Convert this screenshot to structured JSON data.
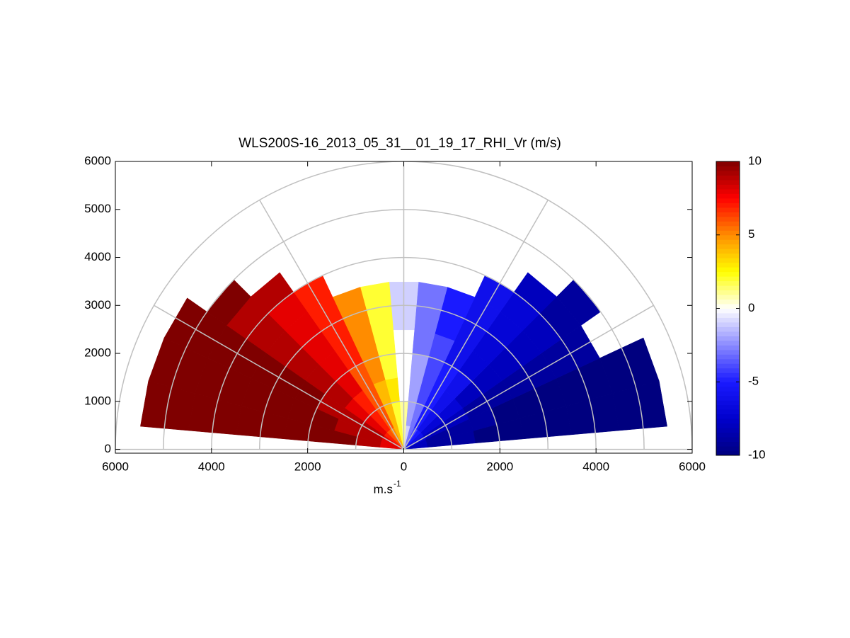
{
  "chart_data": {
    "type": "polar-rhi",
    "title": "WLS200S-16_2013_05_31__01_19_17_RHI_Vr (m/s)",
    "xlabel": "m.s",
    "xlabel_sup": "-1",
    "xlim": [
      -6000,
      6000
    ],
    "ylim": [
      -80,
      6000
    ],
    "xticks": [
      {
        "value": -6000,
        "label": "6000"
      },
      {
        "value": -4000,
        "label": "4000"
      },
      {
        "value": -2000,
        "label": "2000"
      },
      0,
      2000,
      4000,
      6000
    ],
    "yticks": [
      0,
      1000,
      2000,
      3000,
      4000,
      5000,
      6000
    ],
    "range_rings": [
      1000,
      2000,
      3000,
      4000,
      5000,
      6000
    ],
    "radial_angles": [
      0,
      30,
      60,
      90,
      120,
      150,
      180
    ],
    "grid_color": "#c0c0c0",
    "angle_edges": [
      5,
      15,
      25,
      35,
      45,
      55,
      65,
      75,
      85,
      95,
      105,
      115,
      125,
      135,
      145,
      155,
      165,
      175
    ],
    "range_edges": [
      0,
      500,
      1000,
      1500,
      2000,
      2500,
      3000,
      3500,
      4000,
      4500,
      5000,
      5500,
      6000
    ],
    "field": [
      [
        -8,
        -9,
        -9,
        -10,
        -10,
        -10,
        -10,
        -10,
        -10,
        -10,
        -10,
        null
      ],
      [
        -8,
        -9,
        -9,
        -9,
        -10,
        -10,
        -10,
        -10,
        -10,
        -10,
        -10,
        null
      ],
      [
        -7,
        -8,
        -8,
        -9,
        -9,
        -9,
        -9,
        -9,
        -9,
        null,
        null,
        null
      ],
      [
        -6,
        -7,
        -7,
        -8,
        -8,
        -8,
        -8,
        -8,
        -9,
        -9,
        null,
        null
      ],
      [
        -5,
        -6,
        -6,
        -6,
        -7,
        -7,
        -7,
        -7,
        -8,
        null,
        null,
        null
      ],
      [
        -4,
        -5,
        -5,
        -5,
        -6,
        -6,
        -6,
        -6,
        null,
        null,
        null,
        null
      ],
      [
        -3,
        -3,
        -4,
        -4,
        -4,
        -5,
        -5,
        null,
        null,
        null,
        null,
        null
      ],
      [
        -1,
        -2,
        -2,
        -2,
        -3,
        -3,
        -3,
        null,
        null,
        null,
        null,
        null
      ],
      [
        1,
        1,
        0,
        0,
        0,
        -1,
        -1,
        null,
        null,
        null,
        null,
        null
      ],
      [
        2,
        2,
        3,
        2,
        2,
        2,
        2,
        null,
        null,
        null,
        null,
        null
      ],
      [
        4,
        4,
        4,
        5,
        5,
        5,
        5,
        null,
        null,
        null,
        null,
        null
      ],
      [
        5,
        6,
        6,
        6,
        7,
        7,
        7,
        7,
        null,
        null,
        null,
        null
      ],
      [
        6,
        7,
        7,
        8,
        8,
        8,
        8,
        8,
        9,
        null,
        null,
        null
      ],
      [
        7,
        8,
        8,
        9,
        9,
        9,
        9,
        9,
        9,
        10,
        null,
        null
      ],
      [
        8,
        9,
        9,
        9,
        10,
        10,
        10,
        10,
        10,
        10,
        10,
        null
      ],
      [
        8,
        9,
        9,
        10,
        10,
        10,
        10,
        10,
        10,
        10,
        10,
        null
      ],
      [
        8,
        9,
        10,
        10,
        10,
        10,
        10,
        10,
        10,
        10,
        10,
        null
      ]
    ],
    "clim": [
      -10,
      10
    ],
    "cticks": [
      -10,
      -5,
      0,
      5,
      10
    ],
    "colormap": [
      "#00007f",
      "#0000cc",
      "#1a1aff",
      "#8a8aff",
      "#ffffff",
      "#ffff00",
      "#ff8c00",
      "#ff0000",
      "#7f0000"
    ]
  }
}
